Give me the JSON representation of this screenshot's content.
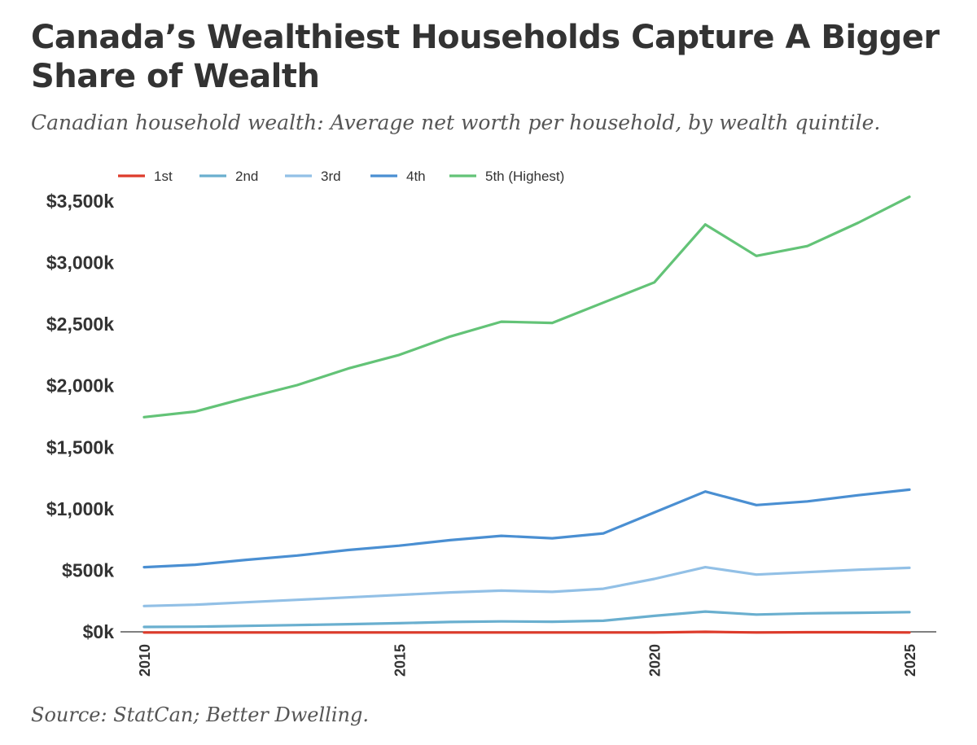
{
  "header": {
    "title": "Canada’s Wealthiest Households Capture A Bigger Share of Wealth",
    "subtitle": "Canadian household wealth: Average net worth per household, by wealth quintile."
  },
  "footer": {
    "source": "Source: StatCan; Better Dwelling."
  },
  "chart_data": {
    "type": "line",
    "xlabel": "",
    "ylabel": "",
    "x": [
      2010,
      2011,
      2012,
      2013,
      2014,
      2015,
      2016,
      2017,
      2018,
      2019,
      2020,
      2021,
      2022,
      2023,
      2024,
      2025
    ],
    "xlim": [
      2010,
      2025
    ],
    "ylim": [
      0,
      3500
    ],
    "x_ticks": [
      {
        "value": 2010,
        "label": "2010"
      },
      {
        "value": 2015,
        "label": "2015"
      },
      {
        "value": 2020,
        "label": "2020"
      },
      {
        "value": 2025,
        "label": "2025"
      }
    ],
    "y_ticks": [
      {
        "value": 0,
        "label": "$0k"
      },
      {
        "value": 500,
        "label": "$500k"
      },
      {
        "value": 1000,
        "label": "$1,000k"
      },
      {
        "value": 1500,
        "label": "$1,500k"
      },
      {
        "value": 2000,
        "label": "$2,000k"
      },
      {
        "value": 2500,
        "label": "$2,500k"
      },
      {
        "value": 3000,
        "label": "$3,000k"
      },
      {
        "value": 3500,
        "label": "$3,500k"
      }
    ],
    "grid": false,
    "legend": "top-left",
    "series": [
      {
        "name": "1st",
        "color": "#dd3b2b",
        "values": [
          -5,
          -5,
          -5,
          -5,
          -5,
          -5,
          -5,
          -5,
          -5,
          -5,
          -5,
          0,
          -5,
          -3,
          -3,
          -5
        ]
      },
      {
        "name": "2nd",
        "color": "#6aafcf",
        "values": [
          40,
          42,
          48,
          55,
          62,
          70,
          80,
          85,
          82,
          90,
          130,
          165,
          140,
          150,
          155,
          160
        ]
      },
      {
        "name": "3rd",
        "color": "#92c0e6",
        "values": [
          210,
          220,
          240,
          260,
          280,
          300,
          320,
          335,
          325,
          350,
          430,
          525,
          465,
          485,
          505,
          520
        ]
      },
      {
        "name": "4th",
        "color": "#4a8fd2",
        "values": [
          525,
          545,
          585,
          620,
          665,
          700,
          745,
          780,
          760,
          800,
          970,
          1140,
          1030,
          1060,
          1110,
          1155
        ]
      },
      {
        "name": "5th (Highest)",
        "color": "#63c377",
        "values": [
          1745,
          1790,
          1900,
          2005,
          2140,
          2250,
          2400,
          2520,
          2510,
          2675,
          2840,
          3310,
          3055,
          3135,
          3325,
          3535
        ]
      }
    ]
  }
}
